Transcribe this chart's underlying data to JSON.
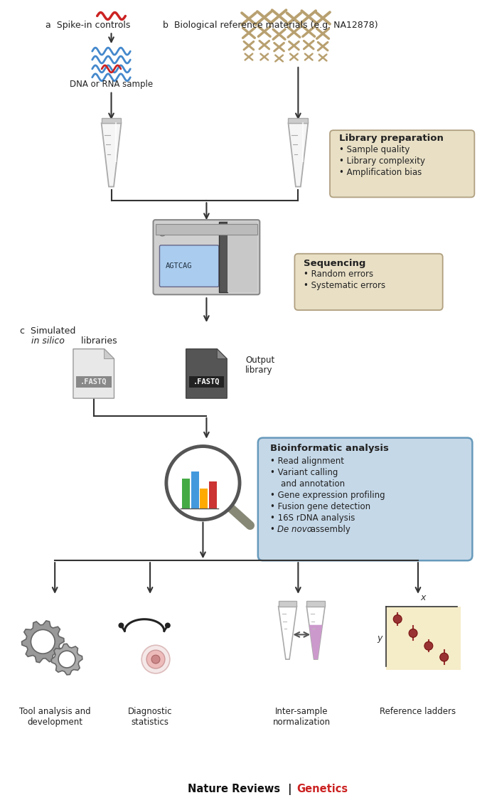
{
  "bg_color": "#ffffff",
  "text_color": "#222222",
  "label_a": "a  Spike-in controls",
  "label_b": "b  Biological reference materials (e.g. NA12878)",
  "label_c_line1": "c  Simulated",
  "label_c_line2": "    in silico libraries",
  "dna_rna_label": "DNA or RNA sample",
  "output_library_label": "Output\nlibrary",
  "lib_prep_title": "Library preparation",
  "lib_prep_bullets": [
    "Sample quality",
    "Library complexity",
    "Amplification bias"
  ],
  "lib_prep_bg": "#e8dfc5",
  "seq_title": "Sequencing",
  "seq_bullets": [
    "Random errors",
    "Systematic errors"
  ],
  "seq_bg": "#e8dfc5",
  "bio_title": "Bioinformatic analysis",
  "bio_bullets": [
    "Read alignment",
    "Variant calling",
    "and annotation",
    "Gene expression profiling",
    "Fusion gene detection",
    "16S rDNA analysis",
    "De novo assembly"
  ],
  "bio_bg": "#c5d8e8",
  "bio_border": "#6699bb",
  "outcome_labels": [
    "Tool analysis and\ndevelopment",
    "Diagnostic\nstatistics",
    "Inter-sample\nnormalization",
    "Reference ladders"
  ],
  "wave_blue": "#4488cc",
  "wave_red": "#cc2222",
  "chrom_color": "#b8a070",
  "bar_colors": [
    "#4499dd",
    "#44aa44",
    "#ffaa00",
    "#cc3333"
  ],
  "scatter_bg": "#f5ecc8",
  "scatter_dot": "#993333",
  "arrow_color": "#333333",
  "gear_color": "#999999",
  "gear_color2": "#aaaaaa",
  "footer_black": "Nature Reviews",
  "footer_red": "Genetics",
  "footer_sep": " | "
}
